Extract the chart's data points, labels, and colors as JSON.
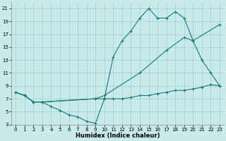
{
  "xlabel": "Humidex (Indice chaleur)",
  "background_color": "#c8eaea",
  "grid_color": "#a0cfcf",
  "line_color": "#1a7a6e",
  "xlim": [
    -0.5,
    23.5
  ],
  "ylim": [
    3,
    22
  ],
  "xticks": [
    0,
    1,
    2,
    3,
    4,
    5,
    6,
    7,
    8,
    9,
    10,
    11,
    12,
    13,
    14,
    15,
    16,
    17,
    18,
    19,
    20,
    21,
    22,
    23
  ],
  "yticks": [
    3,
    5,
    7,
    9,
    11,
    13,
    15,
    17,
    19,
    21
  ],
  "line1_x": [
    0,
    1,
    2,
    3,
    4,
    5,
    6,
    7,
    8,
    9,
    10,
    11,
    12,
    13,
    14,
    15,
    16,
    17,
    18,
    19,
    20,
    21,
    22,
    23
  ],
  "line1_y": [
    8.0,
    7.5,
    6.5,
    6.5,
    5.8,
    5.2,
    4.5,
    4.2,
    3.5,
    3.2,
    7.0,
    7.0,
    7.0,
    7.2,
    7.5,
    7.5,
    7.8,
    8.0,
    8.3,
    8.3,
    8.5,
    8.8,
    9.2,
    9.0
  ],
  "line2_x": [
    0,
    1,
    2,
    3,
    9,
    10,
    11,
    12,
    13,
    14,
    15,
    16,
    17,
    18,
    19,
    20,
    21,
    22,
    23
  ],
  "line2_y": [
    8.0,
    7.5,
    6.5,
    6.5,
    7.0,
    7.0,
    13.5,
    16.0,
    17.5,
    19.5,
    21.0,
    19.5,
    19.5,
    20.5,
    19.5,
    16.0,
    13.0,
    11.0,
    9.0
  ],
  "line3_x": [
    0,
    1,
    2,
    3,
    9,
    10,
    14,
    17,
    19,
    20,
    23
  ],
  "line3_y": [
    8.0,
    7.5,
    6.5,
    6.5,
    7.0,
    7.5,
    11.0,
    14.5,
    16.5,
    16.0,
    18.5
  ]
}
